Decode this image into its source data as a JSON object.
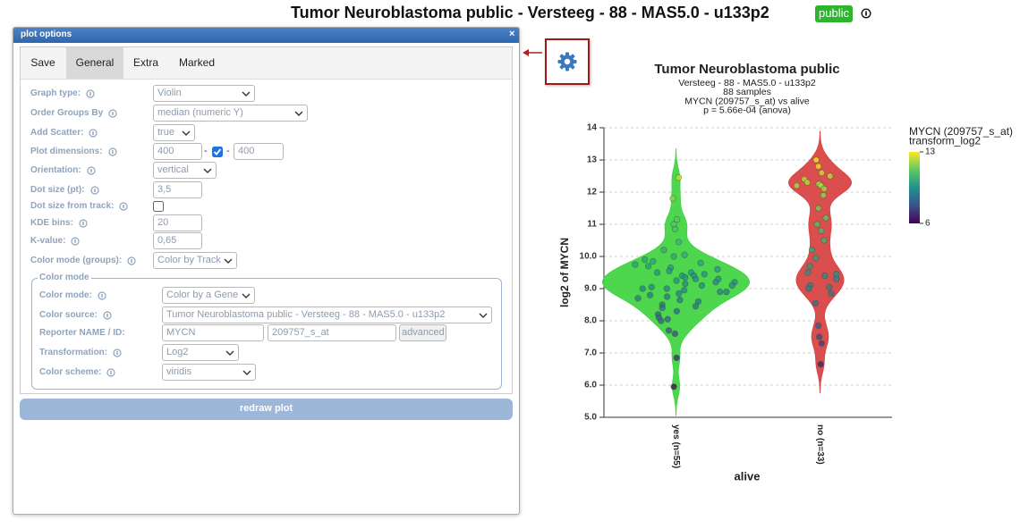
{
  "header": {
    "title": "Tumor Neuroblastoma public - Versteeg - 88 - MAS5.0 - u133p2",
    "badge": "public"
  },
  "panel": {
    "title": "plot options",
    "close": "×",
    "tabs": [
      "Save",
      "General",
      "Extra",
      "Marked"
    ],
    "active_tab": 1,
    "fields": [
      {
        "label": "Graph type:",
        "control": "select",
        "value": "Violin"
      },
      {
        "label": "Order Groups By",
        "control": "select",
        "value": "median (numeric Y)"
      },
      {
        "label": "Add Scatter:",
        "control": "select",
        "value": "true"
      },
      {
        "label": "Plot dimensions:",
        "control": "dims",
        "values": [
          "400",
          "400"
        ],
        "separator": "-",
        "checked": true
      },
      {
        "label": "Orientation:",
        "control": "select",
        "value": "vertical"
      },
      {
        "label": "Dot size (pt):",
        "control": "input",
        "value": "3,5"
      },
      {
        "label": "Dot size from track:",
        "control": "check",
        "checked": false
      },
      {
        "label": "KDE bins:",
        "control": "input",
        "value": "20"
      },
      {
        "label": "K-value:",
        "control": "input",
        "value": "0,65"
      },
      {
        "label": "Color mode (groups):",
        "control": "select",
        "value": "Color by Track"
      }
    ],
    "color_mode": {
      "legend": "Color mode",
      "fields": [
        {
          "label": "Color mode:",
          "control": "select",
          "value": "Color by a Gene"
        },
        {
          "label": "Color source:",
          "control": "select",
          "value": "Tumor Neuroblastoma public - Versteeg - 88 - MAS5.0 - u133p2"
        },
        {
          "label": "Reporter NAME / ID:",
          "control": "reporter",
          "values": [
            "MYCN",
            "209757_s_at"
          ],
          "button": "advanced"
        },
        {
          "label": "Transformation:",
          "control": "select",
          "value": "Log2"
        },
        {
          "label": "Color scheme:",
          "control": "select",
          "value": "viridis"
        }
      ]
    },
    "button": "redraw plot"
  },
  "chart_data": {
    "type": "violin",
    "title": "Tumor Neuroblastoma public",
    "subtitle": [
      "Versteeg - 88 - MAS5.0 - u133p2",
      "88 samples",
      "MYCN (209757_s_at) vs alive",
      "p = 5.66e-04 (anova)"
    ],
    "x_label": "alive",
    "y_label": "log2 of MYCN",
    "ylim": [
      5,
      14
    ],
    "yticks": [
      {
        "value": 5,
        "label": "5.0"
      },
      {
        "value": 6,
        "label": "6.0"
      },
      {
        "value": 7,
        "label": "7.0"
      },
      {
        "value": 8,
        "label": "8.0"
      },
      {
        "value": 9,
        "label": "9.0"
      },
      {
        "value": 10,
        "label": "10.0"
      },
      11,
      12,
      13,
      14
    ],
    "grid": true,
    "series": [
      {
        "name": "yes (n=55)",
        "color": "#44d444",
        "values": [
          12.45,
          11.8,
          11.15,
          11.0,
          10.85,
          10.45,
          10.2,
          10.05,
          10.0,
          9.9,
          9.85,
          9.8,
          9.75,
          9.7,
          9.65,
          9.6,
          9.55,
          9.5,
          9.5,
          9.45,
          9.4,
          9.4,
          9.35,
          9.3,
          9.3,
          9.25,
          9.2,
          9.2,
          9.15,
          9.1,
          9.1,
          9.05,
          9.0,
          9.0,
          8.95,
          8.9,
          8.9,
          8.85,
          8.8,
          8.75,
          8.7,
          8.65,
          8.6,
          8.5,
          8.45,
          8.4,
          8.3,
          8.2,
          8.1,
          8.05,
          8.0,
          7.7,
          7.6,
          6.85,
          5.95
        ]
      },
      {
        "name": "no (n=33)",
        "color": "#d84545",
        "values": [
          13.0,
          12.8,
          12.6,
          12.5,
          12.4,
          12.3,
          12.25,
          12.25,
          12.2,
          12.2,
          12.1,
          11.9,
          11.5,
          11.2,
          11.0,
          10.8,
          10.5,
          10.2,
          9.95,
          9.7,
          9.5,
          9.45,
          9.4,
          9.3,
          9.1,
          9.05,
          9.0,
          8.85,
          8.55,
          7.85,
          7.5,
          7.3,
          6.65
        ]
      }
    ],
    "colorbar": {
      "title": [
        "MYCN (209757_s_at)",
        "transform_log2"
      ],
      "colorscale": "viridis",
      "lim": [
        6,
        13
      ],
      "ticks": [
        13,
        6
      ]
    }
  }
}
